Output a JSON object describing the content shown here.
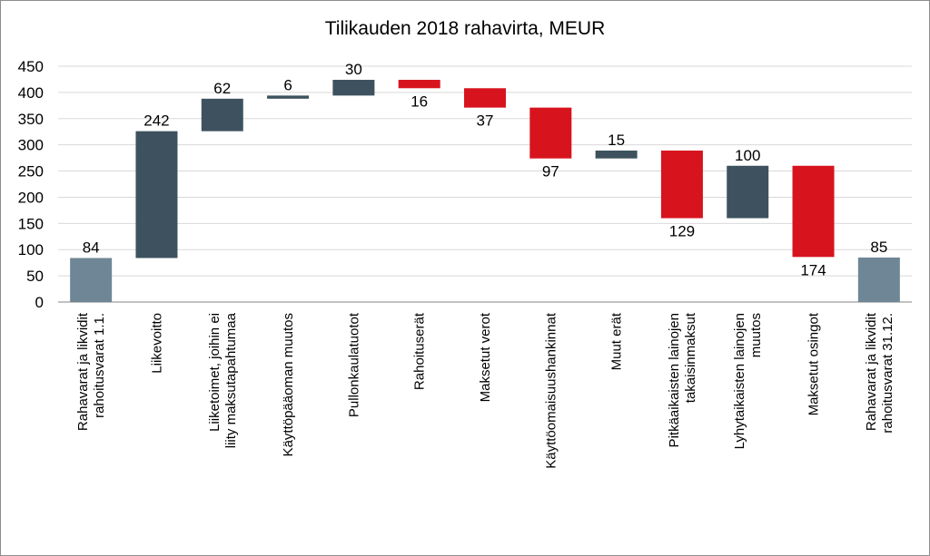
{
  "chart_data": {
    "type": "bar",
    "subtype": "waterfall",
    "title": "Tilikauden 2018 rahavirta, MEUR",
    "xlabel": "",
    "ylabel": "",
    "ylim": [
      0,
      450
    ],
    "yticks": [
      0,
      50,
      100,
      150,
      200,
      250,
      300,
      350,
      400,
      450
    ],
    "grid": true,
    "categories": [
      "Rahavarat ja likvidit rahoitusvarat 1.1.",
      "Liikevoitto",
      "Liiketoimet, joihin ei liity maksutapahtumaa",
      "Käyttöpääoman muutos",
      "Pullonkaulatuotot",
      "Rahoituserät",
      "Maksetut verot",
      "Käyttöomaisuushankinnat",
      "Muut erät",
      "Pitkäaikaisten lainojen takaisinmaksut",
      "Lyhytaikaisten lainojen muutos",
      "Maksetut osingot",
      "Rahavarat  ja likvidit rahoitusvarat 31.12."
    ],
    "bars": [
      {
        "label": "84",
        "start": 0,
        "end": 84,
        "kind": "total"
      },
      {
        "label": "242",
        "start": 84,
        "end": 326,
        "kind": "increase"
      },
      {
        "label": "62",
        "start": 326,
        "end": 388,
        "kind": "increase"
      },
      {
        "label": "6",
        "start": 388,
        "end": 394,
        "kind": "increase"
      },
      {
        "label": "30",
        "start": 394,
        "end": 424,
        "kind": "increase"
      },
      {
        "label": "16",
        "start": 424,
        "end": 408,
        "kind": "decrease"
      },
      {
        "label": "37",
        "start": 408,
        "end": 371,
        "kind": "decrease"
      },
      {
        "label": "97",
        "start": 371,
        "end": 274,
        "kind": "decrease"
      },
      {
        "label": "15",
        "start": 274,
        "end": 289,
        "kind": "increase"
      },
      {
        "label": "129",
        "start": 289,
        "end": 160,
        "kind": "decrease"
      },
      {
        "label": "100",
        "start": 160,
        "end": 260,
        "kind": "increase"
      },
      {
        "label": "174",
        "start": 260,
        "end": 86,
        "kind": "decrease"
      },
      {
        "label": "85",
        "start": 0,
        "end": 85,
        "kind": "total"
      }
    ],
    "colors": {
      "total": "#6f8696",
      "increase": "#3d525e",
      "decrease": "#d7141e",
      "grid": "#d9d9d9",
      "axis": "#868686"
    }
  }
}
